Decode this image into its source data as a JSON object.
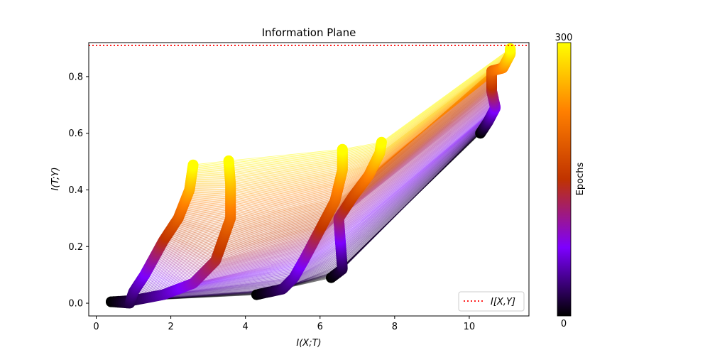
{
  "chart_data": {
    "type": "line",
    "title": "Information Plane",
    "xlabel": "I(X;T)",
    "ylabel": "I(T;Y)",
    "xlim": [
      -0.2,
      11.6
    ],
    "ylim": [
      -0.045,
      0.92
    ],
    "xticks": [
      0,
      2,
      4,
      6,
      8,
      10
    ],
    "yticks": [
      0.0,
      0.2,
      0.4,
      0.6,
      0.8
    ],
    "xtick_labels": [
      "0",
      "2",
      "4",
      "6",
      "8",
      "10"
    ],
    "ytick_labels": [
      "0.0",
      "0.2",
      "0.4",
      "0.6",
      "0.8"
    ],
    "reference_line": {
      "name": "I[X,Y]",
      "y": 0.91,
      "style": "dotted",
      "color": "#ff0000"
    },
    "legend": {
      "position": "lower right",
      "entries": [
        "I[X,Y]"
      ]
    },
    "colorbar": {
      "label": "Epochs",
      "min": 0,
      "max": 300,
      "min_label": "0",
      "max_label": "300",
      "colormap": "gnuplot",
      "stops": [
        "#000000",
        "#7d00ff",
        "#c03300",
        "#ff8000",
        "#ffff00"
      ]
    },
    "epochs": 300,
    "layer_trajectories": [
      {
        "layer": 1,
        "points": [
          [
            0.4,
            0.005
          ],
          [
            0.9,
            0.0
          ],
          [
            1.0,
            0.04
          ],
          [
            1.3,
            0.1
          ],
          [
            1.8,
            0.22
          ],
          [
            2.2,
            0.3
          ],
          [
            2.5,
            0.4
          ],
          [
            2.6,
            0.49
          ]
        ]
      },
      {
        "layer": 2,
        "points": [
          [
            0.4,
            0.005
          ],
          [
            1.0,
            0.01
          ],
          [
            1.8,
            0.03
          ],
          [
            2.6,
            0.07
          ],
          [
            3.2,
            0.15
          ],
          [
            3.6,
            0.3
          ],
          [
            3.6,
            0.42
          ],
          [
            3.55,
            0.505
          ]
        ]
      },
      {
        "layer": 3,
        "points": [
          [
            4.3,
            0.03
          ],
          [
            5.0,
            0.05
          ],
          [
            5.3,
            0.09
          ],
          [
            5.6,
            0.16
          ],
          [
            6.0,
            0.26
          ],
          [
            6.4,
            0.36
          ],
          [
            6.6,
            0.47
          ],
          [
            6.6,
            0.545
          ]
        ]
      },
      {
        "layer": 4,
        "points": [
          [
            6.3,
            0.09
          ],
          [
            6.6,
            0.12
          ],
          [
            6.5,
            0.3
          ],
          [
            6.9,
            0.38
          ],
          [
            7.3,
            0.45
          ],
          [
            7.6,
            0.53
          ],
          [
            7.65,
            0.57
          ]
        ]
      },
      {
        "layer": 5,
        "points": [
          [
            10.3,
            0.6
          ],
          [
            10.5,
            0.64
          ],
          [
            10.7,
            0.69
          ],
          [
            10.6,
            0.75
          ],
          [
            10.6,
            0.82
          ],
          [
            10.9,
            0.83
          ],
          [
            11.1,
            0.88
          ],
          [
            11.1,
            0.9
          ]
        ]
      }
    ]
  }
}
